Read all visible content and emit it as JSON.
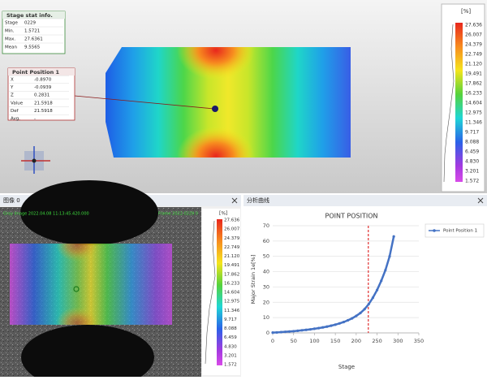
{
  "stat_panel": {
    "title": "Stage stat info.",
    "rows": [
      [
        "Stage",
        "0229"
      ],
      [
        "Min.",
        "1.5721"
      ],
      [
        "Max.",
        "27.6361"
      ],
      [
        "Mean",
        "9.5565"
      ]
    ]
  },
  "point_panel": {
    "title": "Point Position 1",
    "rows": [
      [
        "X",
        "-0.8970"
      ],
      [
        "Y",
        "-0.0939"
      ],
      [
        "Z",
        "0.2831"
      ],
      [
        "Value",
        "21.5918"
      ],
      [
        "Def",
        "21.5918"
      ],
      [
        "Avg.",
        "-"
      ]
    ]
  },
  "color_scale": {
    "unit": "[%]",
    "labels": [
      "27.636",
      "26.007",
      "24.379",
      "22.749",
      "21.120",
      "19.491",
      "17.862",
      "16.233",
      "14.604",
      "12.975",
      "11.346",
      "9.717",
      "8.088",
      "6.459",
      "4.830",
      "3.201",
      "1.572"
    ]
  },
  "image_panel": {
    "title": "图像 0",
    "info_left": "Gray Image  2022.04.08 11:13:45.420.000",
    "info_right": "Frame 2022.0229 0"
  },
  "curve_panel": {
    "title": "分析曲线"
  },
  "chart_data": {
    "type": "line",
    "title": "POINT POSITION",
    "x_label": "Stage",
    "y_label": "Major Strain 1e[%]",
    "x": [
      0,
      10,
      20,
      30,
      40,
      50,
      60,
      70,
      80,
      90,
      100,
      110,
      120,
      130,
      140,
      150,
      160,
      170,
      180,
      190,
      200,
      210,
      220,
      230,
      240,
      250,
      260,
      270,
      280,
      290
    ],
    "series": [
      {
        "name": "Point Position 1",
        "color": "#4472c4",
        "values": [
          0.2,
          0.3,
          0.5,
          0.7,
          0.9,
          1.1,
          1.4,
          1.7,
          2.0,
          2.3,
          2.7,
          3.1,
          3.6,
          4.1,
          4.7,
          5.4,
          6.2,
          7.1,
          8.2,
          9.5,
          11.1,
          13.0,
          15.5,
          18.8,
          23.0,
          28.0,
          34.0,
          41.0,
          50.0,
          63.0
        ]
      }
    ],
    "reference_x": 229,
    "reference_color": "#e03030",
    "xlim": [
      0,
      350
    ],
    "ylim": [
      0,
      70
    ],
    "xticks": [
      0,
      50,
      100,
      150,
      200,
      250,
      300,
      350
    ],
    "yticks": [
      0,
      10,
      20,
      30,
      40,
      50,
      60,
      70
    ],
    "grid": true,
    "legend": "right"
  }
}
